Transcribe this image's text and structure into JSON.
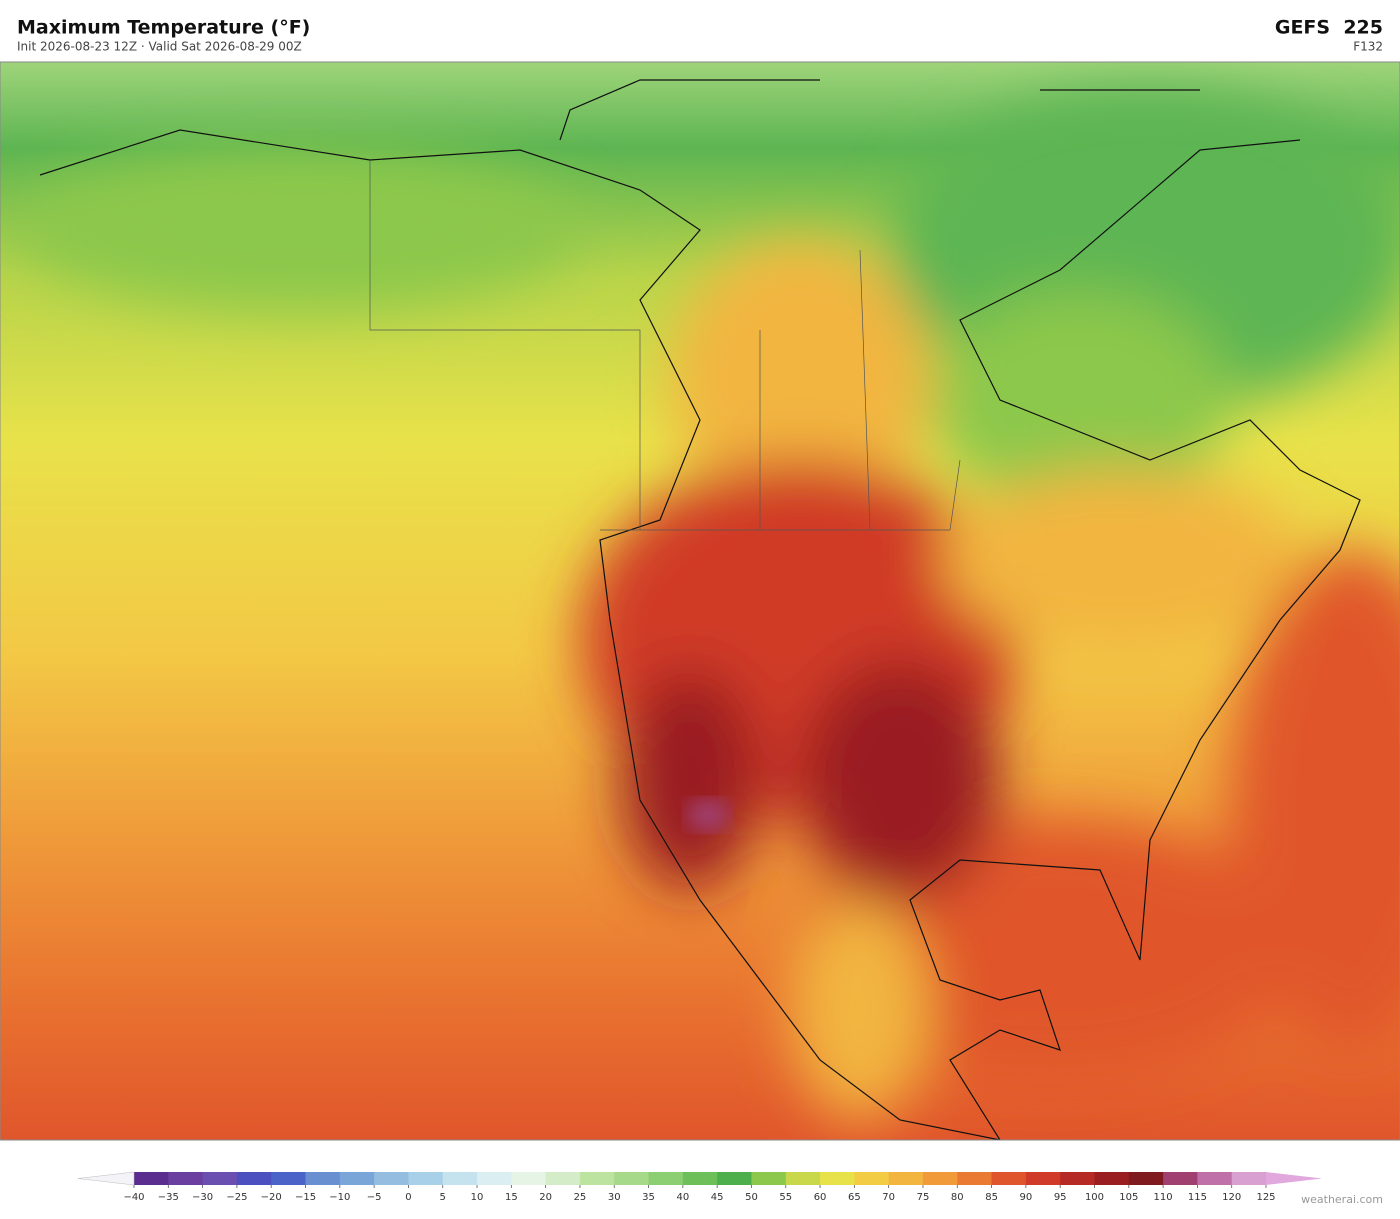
{
  "header": {
    "title": "Maximum Temperature  (°F)",
    "subtitle": "Init 2026-08-23 12Z  ·  Valid Sat 2026-08-29 00Z",
    "model": "GEFS  225",
    "forecast_hour": "F132"
  },
  "colorbar": {
    "ticks": [
      {
        "value": -40,
        "label": "−40"
      },
      {
        "value": -35,
        "label": "−35"
      },
      {
        "value": -30,
        "label": "−30"
      },
      {
        "value": -25,
        "label": "−25"
      },
      {
        "value": -20,
        "label": "−20"
      },
      {
        "value": -15,
        "label": "−15"
      },
      {
        "value": -10,
        "label": "−10"
      },
      {
        "value": -5,
        "label": "−5"
      },
      0,
      5,
      10,
      15,
      20,
      25,
      30,
      35,
      40,
      45,
      50,
      55,
      60,
      65,
      70,
      75,
      80,
      85,
      90,
      95,
      100,
      105,
      110,
      115,
      120,
      125
    ],
    "colors": [
      "#5b2d8e",
      "#6b3fa0",
      "#6a4fb0",
      "#4b4fc0",
      "#4a63c8",
      "#6a8fd0",
      "#7aa5d8",
      "#94bde0",
      "#a8d0e8",
      "#c5e2ef",
      "#dbeef2",
      "#e6f4e6",
      "#d5ecc8",
      "#bde3a0",
      "#a6d98a",
      "#8ccf72",
      "#6dbf5a",
      "#4caf4c",
      "#8cc84b",
      "#c8d84a",
      "#e8e24a",
      "#f3cc45",
      "#f2b540",
      "#f09a3a",
      "#ea7a32",
      "#e0562c",
      "#d03a28",
      "#b52a24",
      "#9a1e20",
      "#7f1a1e",
      "#a04070",
      "#c070a8",
      "#d8a0d0"
    ],
    "under_color": "#f4f4f8",
    "over_color": "#e0a8dc"
  },
  "watermark": "weatherai.com"
}
